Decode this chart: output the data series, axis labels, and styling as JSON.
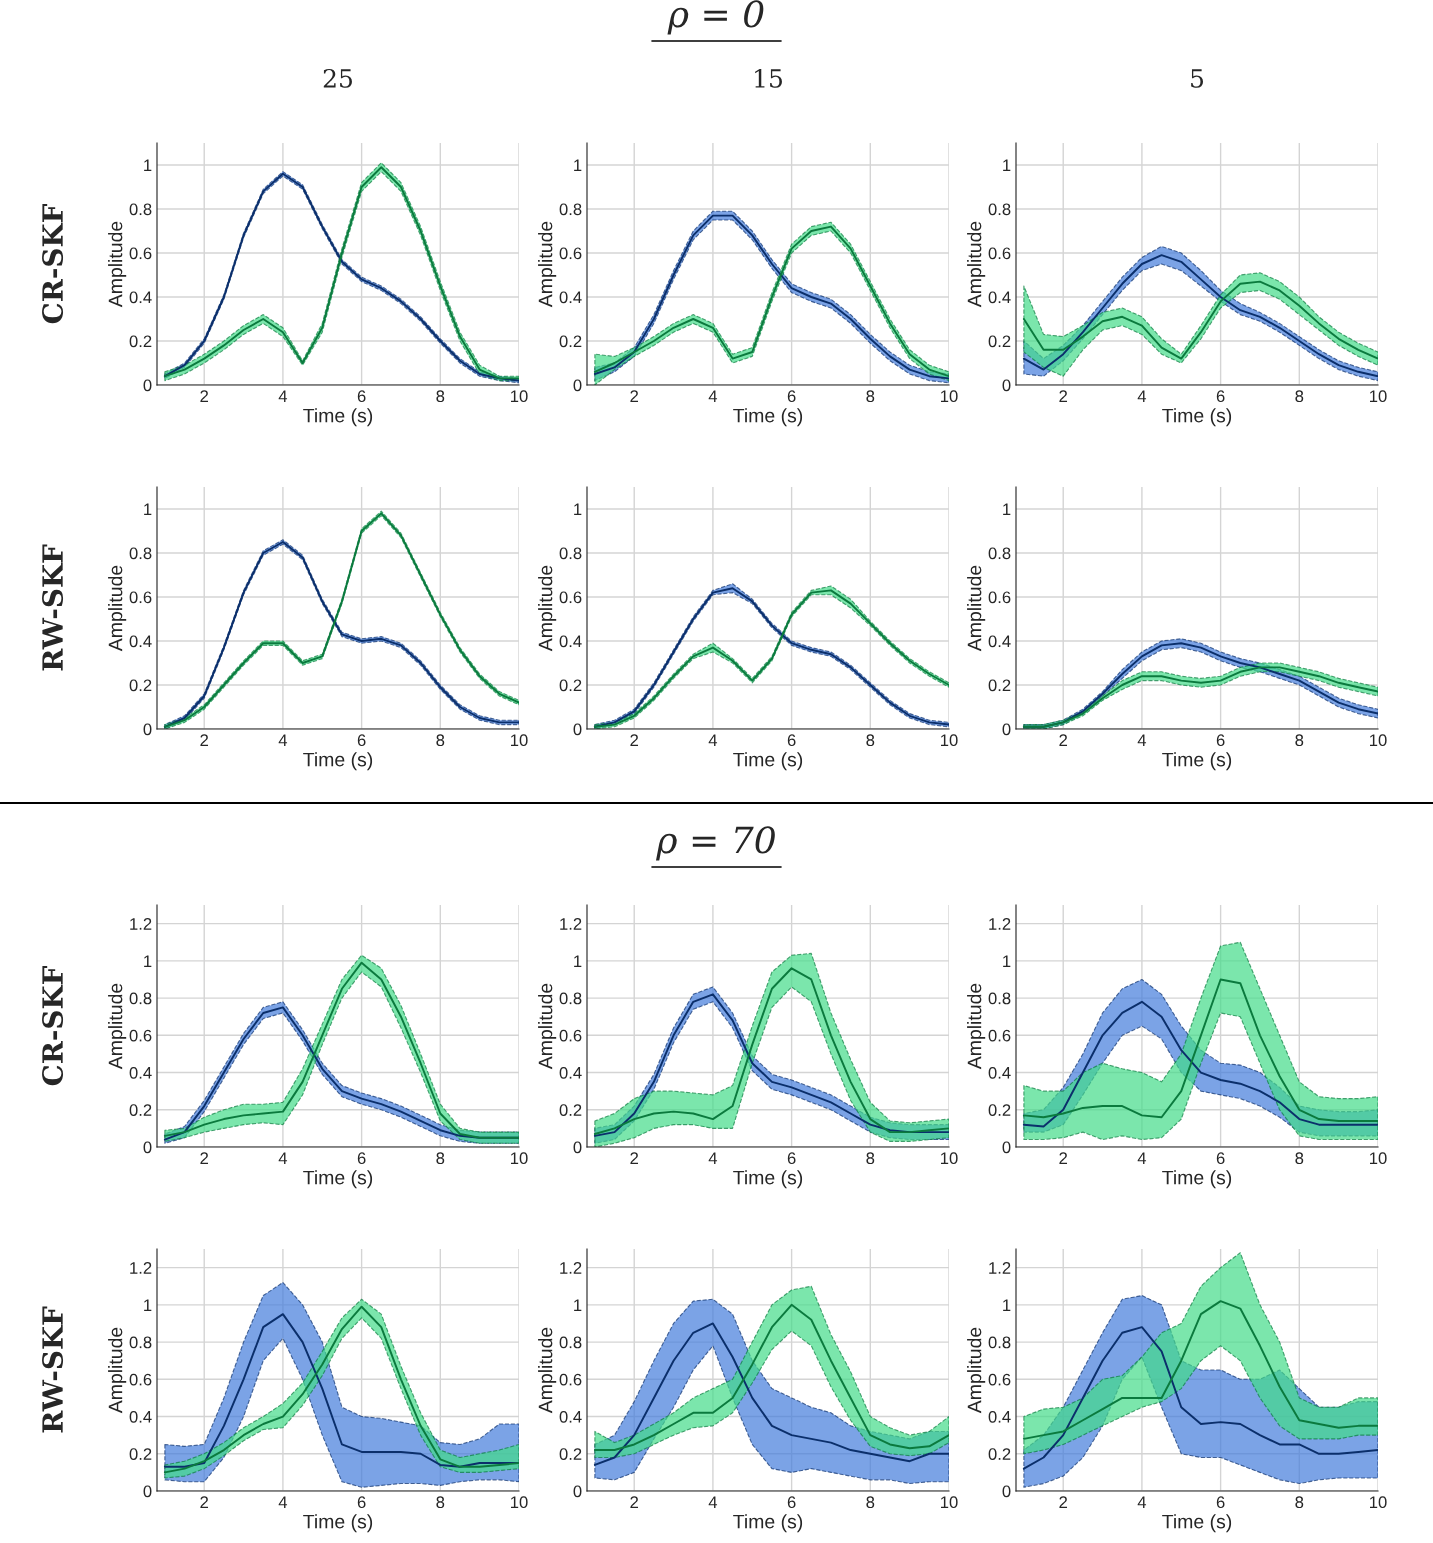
{
  "chart_data": [
    {
      "type": "line",
      "title": "25",
      "xlabel": "Time (s)",
      "ylabel": "Amplitude",
      "annotations": [
        "ρ = 0",
        "CR-SKF"
      ],
      "x": [
        1,
        1.5,
        2,
        2.5,
        3,
        3.5,
        4,
        4.5,
        5,
        5.5,
        6,
        6.5,
        7,
        7.5,
        8,
        8.5,
        9,
        9.5,
        10
      ],
      "xlim": [
        0.8,
        10
      ],
      "ylim": [
        0,
        1.1
      ],
      "xticks": [
        2,
        4,
        6,
        8,
        10
      ],
      "yticks": [
        0,
        0.2,
        0.4,
        0.6,
        0.8,
        1
      ],
      "grid": true,
      "series": [
        {
          "color": "#0b2f6b",
          "values": [
            0.04,
            0.09,
            0.2,
            0.4,
            0.68,
            0.88,
            0.96,
            0.9,
            0.72,
            0.56,
            0.48,
            0.44,
            0.38,
            0.3,
            0.2,
            0.11,
            0.05,
            0.03,
            0.02
          ],
          "lower": [
            0.03,
            0.08,
            0.19,
            0.39,
            0.67,
            0.87,
            0.95,
            0.89,
            0.71,
            0.55,
            0.47,
            0.43,
            0.37,
            0.29,
            0.19,
            0.1,
            0.04,
            0.02,
            0.01
          ],
          "upper": [
            0.05,
            0.1,
            0.21,
            0.41,
            0.69,
            0.89,
            0.97,
            0.91,
            0.73,
            0.57,
            0.49,
            0.45,
            0.39,
            0.31,
            0.21,
            0.12,
            0.06,
            0.04,
            0.03
          ]
        },
        {
          "color": "#0b7a3e",
          "values": [
            0.04,
            0.07,
            0.12,
            0.18,
            0.25,
            0.3,
            0.24,
            0.1,
            0.26,
            0.6,
            0.9,
            0.99,
            0.9,
            0.7,
            0.45,
            0.22,
            0.07,
            0.03,
            0.03
          ],
          "lower": [
            0.02,
            0.05,
            0.1,
            0.16,
            0.23,
            0.28,
            0.22,
            0.09,
            0.24,
            0.58,
            0.88,
            0.97,
            0.88,
            0.68,
            0.43,
            0.2,
            0.05,
            0.02,
            0.02
          ],
          "upper": [
            0.06,
            0.09,
            0.14,
            0.2,
            0.27,
            0.32,
            0.26,
            0.11,
            0.28,
            0.62,
            0.92,
            1.01,
            0.92,
            0.72,
            0.47,
            0.24,
            0.09,
            0.04,
            0.04
          ]
        }
      ]
    },
    {
      "type": "line",
      "title": "15",
      "xlabel": "Time (s)",
      "ylabel": "Amplitude",
      "x": [
        1,
        1.5,
        2,
        2.5,
        3,
        3.5,
        4,
        4.5,
        5,
        5.5,
        6,
        6.5,
        7,
        7.5,
        8,
        8.5,
        9,
        9.5,
        10
      ],
      "xlim": [
        0.8,
        10
      ],
      "ylim": [
        0,
        1.1
      ],
      "xticks": [
        2,
        4,
        6,
        8,
        10
      ],
      "yticks": [
        0,
        0.2,
        0.4,
        0.6,
        0.8,
        1
      ],
      "grid": true,
      "series": [
        {
          "color": "#0b2f6b",
          "values": [
            0.05,
            0.08,
            0.15,
            0.3,
            0.5,
            0.68,
            0.77,
            0.77,
            0.68,
            0.55,
            0.44,
            0.4,
            0.37,
            0.3,
            0.21,
            0.13,
            0.07,
            0.04,
            0.03
          ],
          "lower": [
            0.02,
            0.06,
            0.13,
            0.28,
            0.48,
            0.66,
            0.75,
            0.75,
            0.66,
            0.53,
            0.42,
            0.38,
            0.35,
            0.28,
            0.19,
            0.11,
            0.05,
            0.02,
            0.01
          ],
          "upper": [
            0.08,
            0.1,
            0.17,
            0.32,
            0.52,
            0.7,
            0.79,
            0.79,
            0.7,
            0.57,
            0.46,
            0.42,
            0.39,
            0.32,
            0.23,
            0.15,
            0.09,
            0.06,
            0.05
          ]
        },
        {
          "color": "#0b7a3e",
          "values": [
            0.06,
            0.1,
            0.15,
            0.2,
            0.26,
            0.3,
            0.26,
            0.12,
            0.15,
            0.4,
            0.62,
            0.7,
            0.72,
            0.62,
            0.45,
            0.28,
            0.14,
            0.07,
            0.04
          ],
          "lower": [
            0.0,
            0.07,
            0.13,
            0.18,
            0.24,
            0.28,
            0.24,
            0.1,
            0.13,
            0.38,
            0.6,
            0.68,
            0.7,
            0.6,
            0.43,
            0.26,
            0.12,
            0.05,
            0.02
          ],
          "upper": [
            0.14,
            0.13,
            0.17,
            0.22,
            0.28,
            0.32,
            0.28,
            0.14,
            0.17,
            0.42,
            0.64,
            0.72,
            0.74,
            0.64,
            0.47,
            0.3,
            0.16,
            0.09,
            0.06
          ]
        }
      ]
    },
    {
      "type": "line",
      "title": "5",
      "xlabel": "Time (s)",
      "ylabel": "Amplitude",
      "x": [
        1,
        1.5,
        2,
        2.5,
        3,
        3.5,
        4,
        4.5,
        5,
        5.5,
        6,
        6.5,
        7,
        7.5,
        8,
        8.5,
        9,
        9.5,
        10
      ],
      "xlim": [
        0.8,
        10
      ],
      "ylim": [
        0,
        1.1
      ],
      "xticks": [
        2,
        4,
        6,
        8,
        10
      ],
      "yticks": [
        0,
        0.2,
        0.4,
        0.6,
        0.8,
        1
      ],
      "grid": true,
      "series": [
        {
          "color": "#0b2f6b",
          "values": [
            0.12,
            0.07,
            0.14,
            0.24,
            0.35,
            0.46,
            0.55,
            0.59,
            0.56,
            0.48,
            0.4,
            0.34,
            0.31,
            0.26,
            0.2,
            0.14,
            0.09,
            0.06,
            0.04
          ],
          "lower": [
            0.05,
            0.04,
            0.11,
            0.21,
            0.32,
            0.43,
            0.52,
            0.55,
            0.52,
            0.45,
            0.38,
            0.32,
            0.29,
            0.24,
            0.18,
            0.12,
            0.07,
            0.04,
            0.02
          ],
          "upper": [
            0.2,
            0.12,
            0.18,
            0.27,
            0.38,
            0.49,
            0.58,
            0.63,
            0.6,
            0.52,
            0.43,
            0.37,
            0.33,
            0.28,
            0.22,
            0.16,
            0.11,
            0.08,
            0.06
          ]
        },
        {
          "color": "#0b7a3e",
          "values": [
            0.3,
            0.16,
            0.16,
            0.22,
            0.29,
            0.31,
            0.27,
            0.17,
            0.12,
            0.24,
            0.38,
            0.46,
            0.47,
            0.43,
            0.36,
            0.28,
            0.21,
            0.16,
            0.12
          ],
          "lower": [
            0.15,
            0.08,
            0.04,
            0.16,
            0.25,
            0.27,
            0.23,
            0.14,
            0.1,
            0.21,
            0.35,
            0.42,
            0.43,
            0.39,
            0.32,
            0.25,
            0.18,
            0.13,
            0.09
          ],
          "upper": [
            0.45,
            0.23,
            0.22,
            0.27,
            0.33,
            0.35,
            0.31,
            0.21,
            0.14,
            0.27,
            0.41,
            0.5,
            0.51,
            0.47,
            0.4,
            0.31,
            0.24,
            0.19,
            0.15
          ]
        }
      ]
    },
    {
      "type": "line",
      "xlabel": "Time (s)",
      "ylabel": "Amplitude",
      "annotations": [
        "RW-SKF"
      ],
      "x": [
        1,
        1.5,
        2,
        2.5,
        3,
        3.5,
        4,
        4.5,
        5,
        5.5,
        6,
        6.5,
        7,
        7.5,
        8,
        8.5,
        9,
        9.5,
        10
      ],
      "xlim": [
        0.8,
        10
      ],
      "ylim": [
        0,
        1.1
      ],
      "xticks": [
        2,
        4,
        6,
        8,
        10
      ],
      "yticks": [
        0,
        0.2,
        0.4,
        0.6,
        0.8,
        1
      ],
      "grid": true,
      "series": [
        {
          "color": "#0b2f6b",
          "values": [
            0.01,
            0.05,
            0.15,
            0.37,
            0.62,
            0.8,
            0.85,
            0.78,
            0.58,
            0.43,
            0.4,
            0.41,
            0.38,
            0.3,
            0.19,
            0.1,
            0.05,
            0.03,
            0.03
          ],
          "lower": [
            0.0,
            0.04,
            0.14,
            0.36,
            0.61,
            0.79,
            0.84,
            0.77,
            0.57,
            0.42,
            0.39,
            0.4,
            0.37,
            0.29,
            0.18,
            0.09,
            0.04,
            0.02,
            0.02
          ],
          "upper": [
            0.02,
            0.06,
            0.16,
            0.38,
            0.63,
            0.81,
            0.86,
            0.79,
            0.59,
            0.44,
            0.41,
            0.42,
            0.39,
            0.31,
            0.2,
            0.11,
            0.06,
            0.04,
            0.04
          ]
        },
        {
          "color": "#0b7a3e",
          "values": [
            0.01,
            0.04,
            0.1,
            0.2,
            0.3,
            0.39,
            0.39,
            0.3,
            0.33,
            0.58,
            0.9,
            0.98,
            0.88,
            0.7,
            0.52,
            0.36,
            0.24,
            0.16,
            0.12
          ],
          "lower": [
            0.0,
            0.03,
            0.09,
            0.19,
            0.29,
            0.38,
            0.38,
            0.29,
            0.32,
            0.57,
            0.89,
            0.97,
            0.87,
            0.69,
            0.51,
            0.35,
            0.23,
            0.15,
            0.11
          ],
          "upper": [
            0.02,
            0.05,
            0.11,
            0.21,
            0.31,
            0.4,
            0.4,
            0.31,
            0.34,
            0.59,
            0.91,
            0.99,
            0.89,
            0.71,
            0.53,
            0.37,
            0.25,
            0.17,
            0.13
          ]
        }
      ]
    },
    {
      "type": "line",
      "xlabel": "Time (s)",
      "ylabel": "Amplitude",
      "x": [
        1,
        1.5,
        2,
        2.5,
        3,
        3.5,
        4,
        4.5,
        5,
        5.5,
        6,
        6.5,
        7,
        7.5,
        8,
        8.5,
        9,
        9.5,
        10
      ],
      "xlim": [
        0.8,
        10
      ],
      "ylim": [
        0,
        1.1
      ],
      "xticks": [
        2,
        4,
        6,
        8,
        10
      ],
      "yticks": [
        0,
        0.2,
        0.4,
        0.6,
        0.8,
        1
      ],
      "grid": true,
      "series": [
        {
          "color": "#0b2f6b",
          "values": [
            0.01,
            0.03,
            0.08,
            0.2,
            0.35,
            0.5,
            0.62,
            0.64,
            0.58,
            0.47,
            0.39,
            0.36,
            0.34,
            0.28,
            0.2,
            0.12,
            0.06,
            0.03,
            0.02
          ],
          "lower": [
            0.0,
            0.02,
            0.07,
            0.19,
            0.34,
            0.49,
            0.61,
            0.62,
            0.57,
            0.46,
            0.38,
            0.35,
            0.33,
            0.27,
            0.19,
            0.11,
            0.05,
            0.02,
            0.01
          ],
          "upper": [
            0.02,
            0.04,
            0.09,
            0.21,
            0.36,
            0.51,
            0.63,
            0.66,
            0.59,
            0.48,
            0.4,
            0.37,
            0.35,
            0.29,
            0.21,
            0.13,
            0.07,
            0.04,
            0.03
          ]
        },
        {
          "color": "#0b7a3e",
          "values": [
            0.01,
            0.02,
            0.06,
            0.14,
            0.24,
            0.33,
            0.37,
            0.31,
            0.22,
            0.32,
            0.52,
            0.62,
            0.63,
            0.57,
            0.48,
            0.39,
            0.31,
            0.25,
            0.2
          ],
          "lower": [
            0.0,
            0.01,
            0.05,
            0.13,
            0.23,
            0.32,
            0.35,
            0.3,
            0.21,
            0.31,
            0.51,
            0.61,
            0.61,
            0.55,
            0.47,
            0.38,
            0.3,
            0.24,
            0.19
          ],
          "upper": [
            0.02,
            0.03,
            0.07,
            0.15,
            0.25,
            0.34,
            0.39,
            0.32,
            0.23,
            0.33,
            0.53,
            0.63,
            0.65,
            0.59,
            0.49,
            0.4,
            0.32,
            0.26,
            0.21
          ]
        }
      ]
    },
    {
      "type": "line",
      "xlabel": "Time (s)",
      "ylabel": "Amplitude",
      "x": [
        1,
        1.5,
        2,
        2.5,
        3,
        3.5,
        4,
        4.5,
        5,
        5.5,
        6,
        6.5,
        7,
        7.5,
        8,
        8.5,
        9,
        9.5,
        10
      ],
      "xlim": [
        0.8,
        10
      ],
      "ylim": [
        0,
        1.1
      ],
      "xticks": [
        2,
        4,
        6,
        8,
        10
      ],
      "yticks": [
        0,
        0.2,
        0.4,
        0.6,
        0.8,
        1
      ],
      "grid": true,
      "series": [
        {
          "color": "#0b2f6b",
          "values": [
            0.01,
            0.01,
            0.03,
            0.08,
            0.16,
            0.25,
            0.33,
            0.38,
            0.39,
            0.37,
            0.33,
            0.3,
            0.28,
            0.25,
            0.22,
            0.17,
            0.12,
            0.09,
            0.07
          ],
          "lower": [
            0.0,
            0.0,
            0.02,
            0.07,
            0.15,
            0.23,
            0.31,
            0.36,
            0.37,
            0.35,
            0.31,
            0.28,
            0.26,
            0.23,
            0.2,
            0.15,
            0.1,
            0.07,
            0.05
          ],
          "upper": [
            0.02,
            0.02,
            0.04,
            0.09,
            0.17,
            0.27,
            0.35,
            0.4,
            0.41,
            0.39,
            0.35,
            0.32,
            0.3,
            0.27,
            0.24,
            0.19,
            0.14,
            0.11,
            0.09
          ]
        },
        {
          "color": "#0b7a3e",
          "values": [
            0.01,
            0.01,
            0.03,
            0.07,
            0.14,
            0.2,
            0.24,
            0.24,
            0.22,
            0.21,
            0.22,
            0.26,
            0.28,
            0.28,
            0.26,
            0.24,
            0.21,
            0.19,
            0.17
          ],
          "lower": [
            0.0,
            0.0,
            0.02,
            0.06,
            0.13,
            0.18,
            0.22,
            0.22,
            0.2,
            0.19,
            0.2,
            0.24,
            0.26,
            0.26,
            0.24,
            0.22,
            0.19,
            0.17,
            0.15
          ],
          "upper": [
            0.02,
            0.02,
            0.04,
            0.08,
            0.15,
            0.22,
            0.26,
            0.26,
            0.24,
            0.23,
            0.24,
            0.28,
            0.3,
            0.3,
            0.28,
            0.26,
            0.23,
            0.21,
            0.19
          ]
        }
      ]
    },
    {
      "type": "line",
      "xlabel": "Time (s)",
      "ylabel": "Amplitude",
      "annotations": [
        "ρ = 70",
        "CR-SKF"
      ],
      "x": [
        1,
        1.5,
        2,
        2.5,
        3,
        3.5,
        4,
        4.5,
        5,
        5.5,
        6,
        6.5,
        7,
        7.5,
        8,
        8.5,
        9,
        9.5,
        10
      ],
      "xlim": [
        0.8,
        10
      ],
      "ylim": [
        0,
        1.3
      ],
      "xticks": [
        2,
        4,
        6,
        8,
        10
      ],
      "yticks": [
        0,
        0.2,
        0.4,
        0.6,
        0.8,
        1,
        1.2
      ],
      "grid": true,
      "series": [
        {
          "color": "#0b2f6b",
          "values": [
            0.04,
            0.08,
            0.22,
            0.4,
            0.58,
            0.72,
            0.75,
            0.6,
            0.42,
            0.3,
            0.26,
            0.23,
            0.19,
            0.14,
            0.09,
            0.06,
            0.05,
            0.05,
            0.05
          ],
          "lower": [
            0.02,
            0.05,
            0.19,
            0.37,
            0.55,
            0.69,
            0.72,
            0.57,
            0.39,
            0.27,
            0.23,
            0.2,
            0.16,
            0.11,
            0.06,
            0.03,
            0.02,
            0.02,
            0.02
          ],
          "upper": [
            0.07,
            0.11,
            0.25,
            0.43,
            0.61,
            0.75,
            0.78,
            0.63,
            0.45,
            0.33,
            0.29,
            0.26,
            0.22,
            0.17,
            0.12,
            0.09,
            0.08,
            0.08,
            0.08
          ]
        },
        {
          "color": "#0b7a3e",
          "values": [
            0.06,
            0.08,
            0.12,
            0.15,
            0.17,
            0.18,
            0.19,
            0.35,
            0.6,
            0.85,
            0.99,
            0.9,
            0.7,
            0.45,
            0.18,
            0.07,
            0.05,
            0.05,
            0.05
          ],
          "lower": [
            0.03,
            0.05,
            0.08,
            0.1,
            0.12,
            0.13,
            0.12,
            0.28,
            0.55,
            0.8,
            0.94,
            0.86,
            0.64,
            0.4,
            0.14,
            0.04,
            0.02,
            0.02,
            0.02
          ],
          "upper": [
            0.09,
            0.1,
            0.16,
            0.2,
            0.23,
            0.23,
            0.24,
            0.42,
            0.66,
            0.9,
            1.03,
            0.96,
            0.76,
            0.5,
            0.23,
            0.1,
            0.08,
            0.08,
            0.08
          ]
        }
      ]
    },
    {
      "type": "line",
      "xlabel": "Time (s)",
      "ylabel": "Amplitude",
      "x": [
        1,
        1.5,
        2,
        2.5,
        3,
        3.5,
        4,
        4.5,
        5,
        5.5,
        6,
        6.5,
        7,
        7.5,
        8,
        8.5,
        9,
        9.5,
        10
      ],
      "xlim": [
        0.8,
        10
      ],
      "ylim": [
        0,
        1.3
      ],
      "xticks": [
        2,
        4,
        6,
        8,
        10
      ],
      "yticks": [
        0,
        0.2,
        0.4,
        0.6,
        0.8,
        1,
        1.2
      ],
      "grid": true,
      "series": [
        {
          "color": "#0b2f6b",
          "values": [
            0.06,
            0.08,
            0.18,
            0.35,
            0.6,
            0.78,
            0.82,
            0.68,
            0.45,
            0.35,
            0.32,
            0.28,
            0.24,
            0.18,
            0.12,
            0.09,
            0.08,
            0.08,
            0.08
          ],
          "lower": [
            0.02,
            0.04,
            0.14,
            0.31,
            0.56,
            0.74,
            0.78,
            0.64,
            0.41,
            0.31,
            0.28,
            0.24,
            0.2,
            0.14,
            0.08,
            0.05,
            0.04,
            0.04,
            0.04
          ],
          "upper": [
            0.1,
            0.12,
            0.22,
            0.39,
            0.64,
            0.82,
            0.86,
            0.72,
            0.49,
            0.39,
            0.36,
            0.32,
            0.28,
            0.22,
            0.16,
            0.13,
            0.12,
            0.12,
            0.12
          ]
        },
        {
          "color": "#0b7a3e",
          "values": [
            0.07,
            0.1,
            0.15,
            0.18,
            0.19,
            0.18,
            0.15,
            0.22,
            0.55,
            0.85,
            0.96,
            0.9,
            0.6,
            0.35,
            0.15,
            0.08,
            0.08,
            0.09,
            0.1
          ],
          "lower": [
            0.0,
            0.02,
            0.05,
            0.1,
            0.12,
            0.12,
            0.1,
            0.1,
            0.45,
            0.75,
            0.86,
            0.78,
            0.5,
            0.25,
            0.08,
            0.03,
            0.03,
            0.04,
            0.05
          ],
          "upper": [
            0.14,
            0.18,
            0.26,
            0.3,
            0.3,
            0.29,
            0.28,
            0.33,
            0.65,
            0.94,
            1.03,
            1.04,
            0.72,
            0.47,
            0.24,
            0.14,
            0.13,
            0.14,
            0.15
          ]
        }
      ]
    },
    {
      "type": "line",
      "xlabel": "Time (s)",
      "ylabel": "Amplitude",
      "x": [
        1,
        1.5,
        2,
        2.5,
        3,
        3.5,
        4,
        4.5,
        5,
        5.5,
        6,
        6.5,
        7,
        7.5,
        8,
        8.5,
        9,
        9.5,
        10
      ],
      "xlim": [
        0.8,
        10
      ],
      "ylim": [
        0,
        1.3
      ],
      "xticks": [
        2,
        4,
        6,
        8,
        10
      ],
      "yticks": [
        0,
        0.2,
        0.4,
        0.6,
        0.8,
        1,
        1.2
      ],
      "grid": true,
      "series": [
        {
          "color": "#0b2f6b",
          "values": [
            0.12,
            0.11,
            0.2,
            0.4,
            0.6,
            0.72,
            0.78,
            0.7,
            0.52,
            0.4,
            0.36,
            0.34,
            0.3,
            0.24,
            0.15,
            0.12,
            0.12,
            0.12,
            0.12
          ],
          "lower": [
            0.08,
            0.08,
            0.12,
            0.28,
            0.45,
            0.6,
            0.65,
            0.58,
            0.4,
            0.3,
            0.28,
            0.26,
            0.22,
            0.16,
            0.08,
            0.06,
            0.06,
            0.06,
            0.06
          ],
          "upper": [
            0.18,
            0.2,
            0.32,
            0.5,
            0.72,
            0.85,
            0.9,
            0.82,
            0.65,
            0.52,
            0.45,
            0.44,
            0.4,
            0.32,
            0.22,
            0.2,
            0.19,
            0.19,
            0.2
          ]
        },
        {
          "color": "#0b7a3e",
          "values": [
            0.17,
            0.16,
            0.18,
            0.21,
            0.22,
            0.22,
            0.17,
            0.16,
            0.3,
            0.6,
            0.9,
            0.88,
            0.6,
            0.38,
            0.2,
            0.15,
            0.14,
            0.14,
            0.14
          ],
          "lower": [
            0.04,
            0.04,
            0.05,
            0.08,
            0.04,
            0.06,
            0.04,
            0.05,
            0.15,
            0.45,
            0.72,
            0.7,
            0.45,
            0.2,
            0.06,
            0.04,
            0.04,
            0.04,
            0.04
          ],
          "upper": [
            0.33,
            0.3,
            0.3,
            0.4,
            0.45,
            0.42,
            0.4,
            0.35,
            0.5,
            0.8,
            1.08,
            1.1,
            0.85,
            0.6,
            0.35,
            0.27,
            0.26,
            0.26,
            0.27
          ]
        }
      ]
    },
    {
      "type": "line",
      "xlabel": "Time (s)",
      "ylabel": "Amplitude",
      "annotations": [
        "RW-SKF"
      ],
      "x": [
        1,
        1.5,
        2,
        2.5,
        3,
        3.5,
        4,
        4.5,
        5,
        5.5,
        6,
        6.5,
        7,
        7.5,
        8,
        8.5,
        9,
        9.5,
        10
      ],
      "xlim": [
        0.8,
        10
      ],
      "ylim": [
        0,
        1.3
      ],
      "xticks": [
        2,
        4,
        6,
        8,
        10
      ],
      "yticks": [
        0,
        0.2,
        0.4,
        0.6,
        0.8,
        1,
        1.2
      ],
      "grid": true,
      "series": [
        {
          "color": "#0b2f6b",
          "values": [
            0.13,
            0.13,
            0.15,
            0.35,
            0.6,
            0.88,
            0.95,
            0.8,
            0.55,
            0.25,
            0.21,
            0.21,
            0.21,
            0.2,
            0.14,
            0.13,
            0.15,
            0.15,
            0.15
          ],
          "lower": [
            0.06,
            0.05,
            0.05,
            0.18,
            0.4,
            0.7,
            0.82,
            0.6,
            0.3,
            0.05,
            0.02,
            0.03,
            0.04,
            0.04,
            0.03,
            0.05,
            0.06,
            0.06,
            0.05
          ],
          "upper": [
            0.25,
            0.24,
            0.25,
            0.5,
            0.8,
            1.05,
            1.12,
            1.0,
            0.8,
            0.45,
            0.4,
            0.39,
            0.37,
            0.35,
            0.26,
            0.25,
            0.28,
            0.36,
            0.36
          ]
        },
        {
          "color": "#0b7a3e",
          "values": [
            0.1,
            0.12,
            0.16,
            0.22,
            0.3,
            0.36,
            0.4,
            0.52,
            0.68,
            0.87,
            0.99,
            0.88,
            0.6,
            0.35,
            0.17,
            0.13,
            0.13,
            0.14,
            0.15
          ],
          "lower": [
            0.07,
            0.08,
            0.12,
            0.19,
            0.27,
            0.33,
            0.34,
            0.46,
            0.62,
            0.82,
            0.93,
            0.82,
            0.55,
            0.3,
            0.13,
            0.1,
            0.1,
            0.11,
            0.12
          ],
          "upper": [
            0.14,
            0.16,
            0.2,
            0.26,
            0.34,
            0.4,
            0.47,
            0.58,
            0.75,
            0.93,
            1.03,
            0.95,
            0.67,
            0.42,
            0.22,
            0.18,
            0.2,
            0.22,
            0.25
          ]
        }
      ]
    },
    {
      "type": "line",
      "xlabel": "Time (s)",
      "ylabel": "Amplitude",
      "x": [
        1,
        1.5,
        2,
        2.5,
        3,
        3.5,
        4,
        4.5,
        5,
        5.5,
        6,
        6.5,
        7,
        7.5,
        8,
        8.5,
        9,
        9.5,
        10
      ],
      "xlim": [
        0.8,
        10
      ],
      "ylim": [
        0,
        1.3
      ],
      "xticks": [
        2,
        4,
        6,
        8,
        10
      ],
      "yticks": [
        0,
        0.2,
        0.4,
        0.6,
        0.8,
        1,
        1.2
      ],
      "grid": true,
      "series": [
        {
          "color": "#0b2f6b",
          "values": [
            0.14,
            0.18,
            0.3,
            0.5,
            0.7,
            0.85,
            0.9,
            0.72,
            0.5,
            0.35,
            0.3,
            0.28,
            0.26,
            0.22,
            0.2,
            0.18,
            0.16,
            0.2,
            0.2
          ],
          "lower": [
            0.07,
            0.06,
            0.1,
            0.28,
            0.45,
            0.65,
            0.78,
            0.5,
            0.25,
            0.12,
            0.1,
            0.12,
            0.1,
            0.08,
            0.06,
            0.06,
            0.04,
            0.05,
            0.05
          ],
          "upper": [
            0.25,
            0.3,
            0.48,
            0.7,
            0.9,
            1.02,
            1.03,
            0.95,
            0.7,
            0.55,
            0.5,
            0.45,
            0.42,
            0.35,
            0.32,
            0.3,
            0.28,
            0.32,
            0.32
          ]
        },
        {
          "color": "#0b7a3e",
          "values": [
            0.22,
            0.22,
            0.25,
            0.3,
            0.36,
            0.42,
            0.42,
            0.5,
            0.68,
            0.88,
            1.0,
            0.92,
            0.7,
            0.5,
            0.3,
            0.25,
            0.23,
            0.24,
            0.3
          ],
          "lower": [
            0.18,
            0.18,
            0.2,
            0.25,
            0.3,
            0.34,
            0.35,
            0.42,
            0.58,
            0.76,
            0.86,
            0.78,
            0.56,
            0.38,
            0.24,
            0.2,
            0.19,
            0.2,
            0.26
          ],
          "upper": [
            0.32,
            0.26,
            0.3,
            0.36,
            0.42,
            0.5,
            0.55,
            0.6,
            0.8,
            1.0,
            1.08,
            1.1,
            0.84,
            0.64,
            0.4,
            0.34,
            0.3,
            0.32,
            0.4
          ]
        }
      ]
    },
    {
      "type": "line",
      "xlabel": "Time (s)",
      "ylabel": "Amplitude",
      "x": [
        1,
        1.5,
        2,
        2.5,
        3,
        3.5,
        4,
        4.5,
        5,
        5.5,
        6,
        6.5,
        7,
        7.5,
        8,
        8.5,
        9,
        9.5,
        10
      ],
      "xlim": [
        0.8,
        10
      ],
      "ylim": [
        0,
        1.3
      ],
      "xticks": [
        2,
        4,
        6,
        8,
        10
      ],
      "yticks": [
        0,
        0.2,
        0.4,
        0.6,
        0.8,
        1,
        1.2
      ],
      "grid": true,
      "series": [
        {
          "color": "#0b2f6b",
          "values": [
            0.12,
            0.18,
            0.3,
            0.5,
            0.7,
            0.85,
            0.88,
            0.75,
            0.45,
            0.36,
            0.37,
            0.36,
            0.3,
            0.25,
            0.25,
            0.2,
            0.2,
            0.21,
            0.22
          ],
          "lower": [
            0.02,
            0.04,
            0.08,
            0.18,
            0.35,
            0.6,
            0.72,
            0.45,
            0.2,
            0.18,
            0.18,
            0.14,
            0.1,
            0.06,
            0.04,
            0.06,
            0.07,
            0.07,
            0.07
          ],
          "upper": [
            0.22,
            0.3,
            0.45,
            0.65,
            0.85,
            1.03,
            1.05,
            1.0,
            0.7,
            0.65,
            0.65,
            0.6,
            0.6,
            0.65,
            0.55,
            0.45,
            0.45,
            0.48,
            0.48
          ]
        },
        {
          "color": "#0b7a3e",
          "values": [
            0.28,
            0.3,
            0.32,
            0.38,
            0.44,
            0.5,
            0.5,
            0.5,
            0.7,
            0.95,
            1.02,
            0.98,
            0.78,
            0.56,
            0.38,
            0.36,
            0.34,
            0.35,
            0.35
          ],
          "lower": [
            0.2,
            0.22,
            0.25,
            0.3,
            0.35,
            0.4,
            0.45,
            0.48,
            0.55,
            0.7,
            0.78,
            0.7,
            0.5,
            0.35,
            0.28,
            0.28,
            0.28,
            0.3,
            0.3
          ],
          "upper": [
            0.4,
            0.44,
            0.45,
            0.5,
            0.6,
            0.62,
            0.72,
            0.85,
            0.9,
            1.1,
            1.2,
            1.28,
            1.0,
            0.8,
            0.5,
            0.45,
            0.45,
            0.5,
            0.5
          ]
        }
      ]
    }
  ]
}
